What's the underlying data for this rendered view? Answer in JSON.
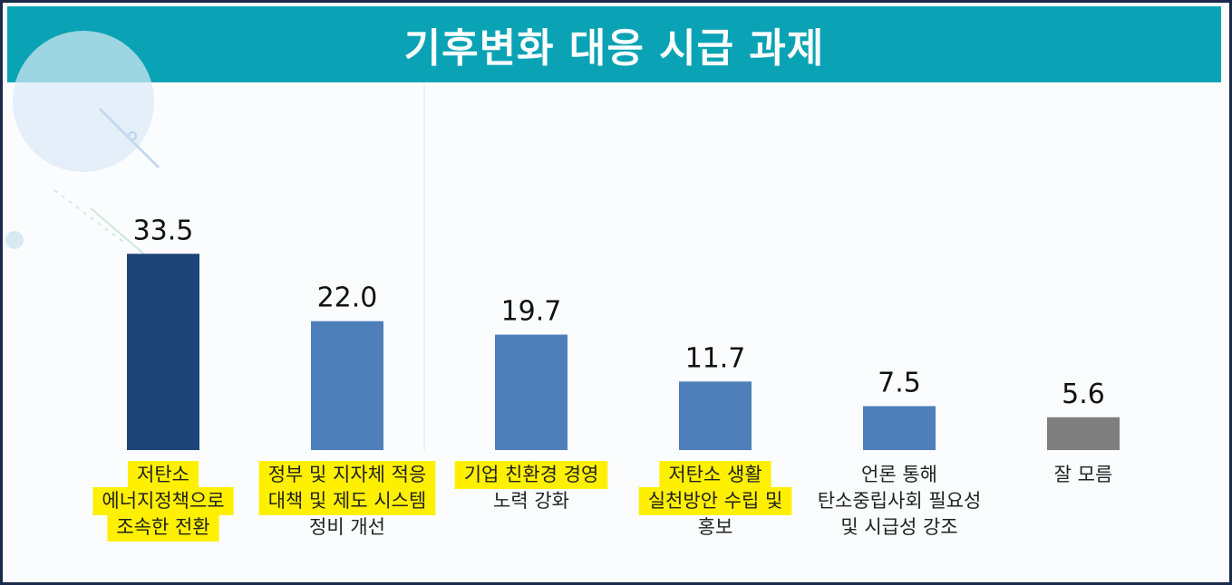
{
  "colors": {
    "header_bg": "#0aa3b5",
    "bar_primary": "#1f4478",
    "bar_secondary": "#4f7fbb",
    "bar_unknown": "#7f7f7f",
    "highlight": "#fff000"
  },
  "chart_data": {
    "type": "bar",
    "title": "기후변화 대응 시급 과제",
    "xlabel": "",
    "ylabel": "",
    "ylim": [
      0,
      40
    ],
    "grid": false,
    "categories": [
      [
        "저탄소",
        "에너지정책으로",
        "조속한 전환"
      ],
      [
        "정부 및 지자체 적응",
        "대책 및 제도 시스템",
        "정비 개선"
      ],
      [
        "기업 친환경 경영",
        "노력 강화"
      ],
      [
        "저탄소 생활",
        "실천방안 수립 및",
        "홍보"
      ],
      [
        "언론 통해",
        "탄소중립사회 필요성",
        "및 시급성 강조"
      ],
      [
        "잘 모름"
      ]
    ],
    "values": [
      33.5,
      22.0,
      19.7,
      11.7,
      7.5,
      5.6
    ],
    "value_labels": [
      "33.5",
      "22.0",
      "19.7",
      "11.7",
      "7.5",
      "5.6"
    ],
    "bar_colors": [
      "#1f4478",
      "#4f7fbb",
      "#4f7fbb",
      "#4f7fbb",
      "#4f7fbb",
      "#7f7f7f"
    ],
    "highlighted_lines": [
      [
        0,
        1,
        2
      ],
      [
        0,
        1
      ],
      [
        0
      ],
      [
        0,
        1
      ],
      [],
      []
    ]
  }
}
